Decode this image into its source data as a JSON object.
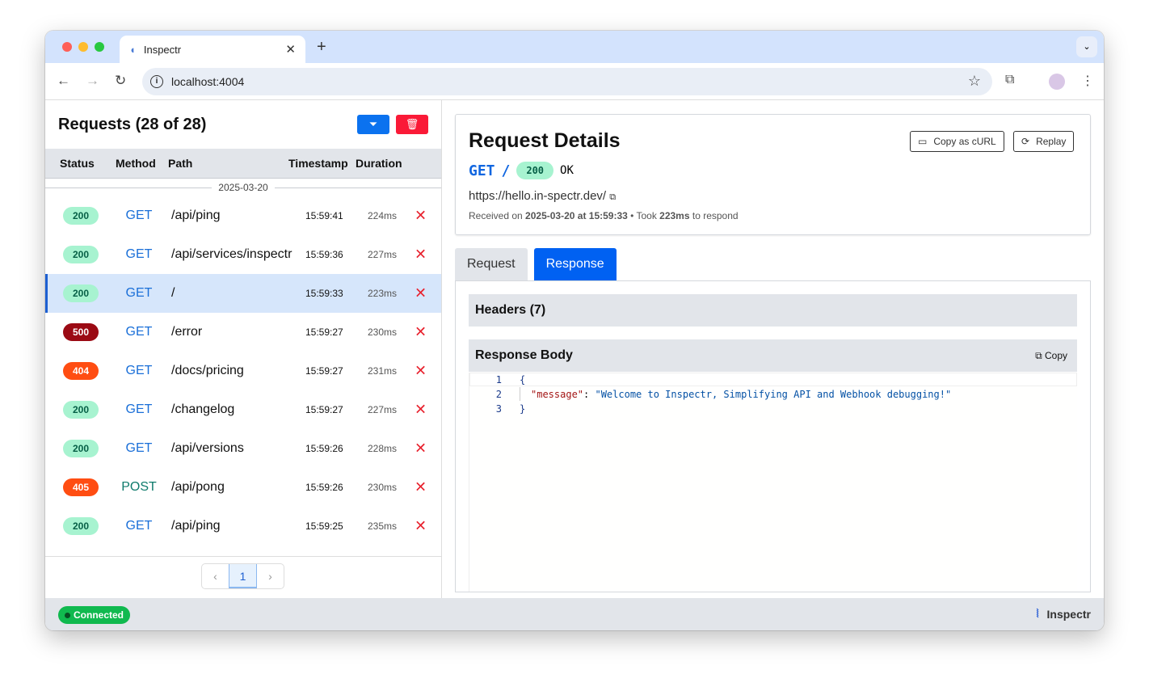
{
  "browser": {
    "tab_title": "Inspectr",
    "url": "localhost:4004"
  },
  "requests": {
    "title": "Requests (28 of 28)",
    "columns": [
      "Status",
      "Method",
      "Path",
      "Timestamp",
      "Duration"
    ],
    "date": "2025-03-20",
    "rows": [
      {
        "status": "200",
        "method": "GET",
        "path": "/api/ping",
        "timestamp": "15:59:41",
        "duration": "224ms"
      },
      {
        "status": "200",
        "method": "GET",
        "path": "/api/services/inspectr",
        "timestamp": "15:59:36",
        "duration": "227ms"
      },
      {
        "status": "200",
        "method": "GET",
        "path": "/",
        "timestamp": "15:59:33",
        "duration": "223ms",
        "selected": true
      },
      {
        "status": "500",
        "method": "GET",
        "path": "/error",
        "timestamp": "15:59:27",
        "duration": "230ms"
      },
      {
        "status": "404",
        "method": "GET",
        "path": "/docs/pricing",
        "timestamp": "15:59:27",
        "duration": "231ms"
      },
      {
        "status": "200",
        "method": "GET",
        "path": "/changelog",
        "timestamp": "15:59:27",
        "duration": "227ms"
      },
      {
        "status": "200",
        "method": "GET",
        "path": "/api/versions",
        "timestamp": "15:59:26",
        "duration": "228ms"
      },
      {
        "status": "405",
        "method": "POST",
        "path": "/api/pong",
        "timestamp": "15:59:26",
        "duration": "230ms"
      },
      {
        "status": "200",
        "method": "GET",
        "path": "/api/ping",
        "timestamp": "15:59:25",
        "duration": "235ms"
      }
    ],
    "pagination": {
      "current": "1"
    }
  },
  "details": {
    "title": "Request Details",
    "copy_curl": "Copy as cURL",
    "replay": "Replay",
    "method": "GET",
    "path": "/",
    "status": "200",
    "status_text": "OK",
    "url": "https://hello.in-spectr.dev/",
    "received_prefix": "Received on ",
    "received_at": "2025-03-20 at 15:59:33",
    "took_prefix": " • Took ",
    "took": "223ms",
    "took_suffix": " to respond",
    "tabs": [
      "Request",
      "Response"
    ],
    "headers_label": "Headers (7)",
    "body_label": "Response Body",
    "copy": "Copy",
    "code": {
      "l1": "{",
      "key": "\"message\"",
      "sep": ": ",
      "value": "\"Welcome to Inspectr, Simplifying API and Webhook debugging!\"",
      "l3": "}"
    }
  },
  "footer": {
    "status": "Connected",
    "brand": "Inspectr"
  },
  "colors": {
    "accent": "#0061f2",
    "danger": "#ff1f3b",
    "ok_bg": "#a7f3d0",
    "err500": "#9b0a14",
    "err4xx": "#ff4d12"
  }
}
